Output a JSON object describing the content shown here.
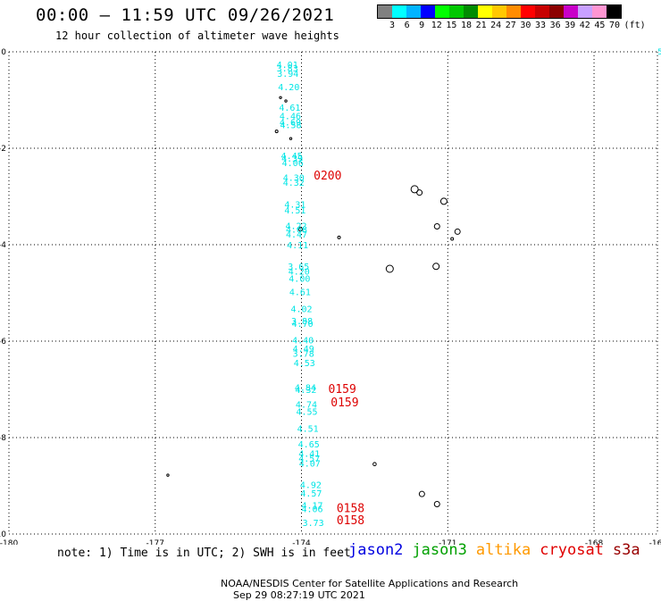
{
  "header": {
    "title": "00:00 – 11:59 UTC 09/26/2021",
    "subtitle": "12 hour collection of altimeter wave heights"
  },
  "legend": {
    "unit": "(ft)",
    "colors": [
      "#808080",
      "#00ffff",
      "#00b4ff",
      "#0000ff",
      "#00ff00",
      "#00c800",
      "#008c00",
      "#ffff00",
      "#ffc800",
      "#ff8c00",
      "#ff0000",
      "#c80000",
      "#8c0000",
      "#c800c8",
      "#c8a0ff",
      "#ff96d2",
      "#000000"
    ],
    "labels": [
      "3",
      "6",
      "9",
      "12",
      "15",
      "18",
      "21",
      "24",
      "27",
      "30",
      "33",
      "36",
      "39",
      "42",
      "45",
      "70"
    ]
  },
  "map": {
    "lon_ticks": [
      "-180",
      "-177",
      "-174",
      "-171",
      "-168",
      "-16"
    ],
    "lat_ticks": [
      "0",
      "-2",
      "-4",
      "-6",
      "-8",
      "-10"
    ],
    "corner_label": "5",
    "grid_lon": [
      -177,
      -174,
      -171,
      -168
    ],
    "grid_lat": [
      -2,
      -4,
      -6,
      -8
    ],
    "swh_color": "#00e5e5",
    "time_color": "#dd0000",
    "swh": [
      {
        "v": "4.01",
        "lat": -0.33,
        "lon": -174.29
      },
      {
        "v": "3.83",
        "lat": -0.41,
        "lon": -174.29
      },
      {
        "v": "3.94",
        "lat": -0.52,
        "lon": -174.28
      },
      {
        "v": "4.20",
        "lat": -0.8,
        "lon": -174.26
      },
      {
        "v": "4.61",
        "lat": -1.22,
        "lon": -174.24
      },
      {
        "v": "4.46",
        "lat": -1.4,
        "lon": -174.23
      },
      {
        "v": "4.69",
        "lat": -1.53,
        "lon": -174.23
      },
      {
        "v": "4.58",
        "lat": -1.58,
        "lon": -174.22
      },
      {
        "v": "4.45",
        "lat": -2.22,
        "lon": -174.2
      },
      {
        "v": "4.39",
        "lat": -2.28,
        "lon": -174.19
      },
      {
        "v": "4.06",
        "lat": -2.37,
        "lon": -174.18
      },
      {
        "v": "4.30",
        "lat": -2.68,
        "lon": -174.16
      },
      {
        "v": "4.32",
        "lat": -2.78,
        "lon": -174.16
      },
      {
        "v": "4.31",
        "lat": -3.23,
        "lon": -174.13
      },
      {
        "v": "4.51",
        "lat": -3.35,
        "lon": -174.13
      },
      {
        "v": "4.22",
        "lat": -3.68,
        "lon": -174.11
      },
      {
        "v": "4.68",
        "lat": -3.75,
        "lon": -174.1
      },
      {
        "v": "4.47",
        "lat": -3.85,
        "lon": -174.1
      },
      {
        "v": "4.11",
        "lat": -4.07,
        "lon": -174.08
      },
      {
        "v": "3.65",
        "lat": -4.52,
        "lon": -174.06
      },
      {
        "v": "4.20",
        "lat": -4.62,
        "lon": -174.05
      },
      {
        "v": "4.00",
        "lat": -4.77,
        "lon": -174.04
      },
      {
        "v": "4.61",
        "lat": -5.05,
        "lon": -174.03
      },
      {
        "v": "4.02",
        "lat": -5.4,
        "lon": -174.0
      },
      {
        "v": "3.88",
        "lat": -5.65,
        "lon": -173.99
      },
      {
        "v": "4.70",
        "lat": -5.7,
        "lon": -173.98
      },
      {
        "v": "4.40",
        "lat": -6.05,
        "lon": -173.97
      },
      {
        "v": "4.49",
        "lat": -6.22,
        "lon": -173.96
      },
      {
        "v": "3.78",
        "lat": -6.32,
        "lon": -173.96
      },
      {
        "v": "4.53",
        "lat": -6.52,
        "lon": -173.94
      },
      {
        "v": "4.84",
        "lat": -7.03,
        "lon": -173.92
      },
      {
        "v": "4.32",
        "lat": -7.07,
        "lon": -173.91
      },
      {
        "v": "4.74",
        "lat": -7.38,
        "lon": -173.9
      },
      {
        "v": "4.55",
        "lat": -7.53,
        "lon": -173.89
      },
      {
        "v": "4.51",
        "lat": -7.88,
        "lon": -173.87
      },
      {
        "v": "4.65",
        "lat": -8.2,
        "lon": -173.85
      },
      {
        "v": "4.41",
        "lat": -8.4,
        "lon": -173.84
      },
      {
        "v": "4.57",
        "lat": -8.5,
        "lon": -173.84
      },
      {
        "v": "4.07",
        "lat": -8.6,
        "lon": -173.83
      },
      {
        "v": "4.92",
        "lat": -9.05,
        "lon": -173.81
      },
      {
        "v": "4.57",
        "lat": -9.22,
        "lon": -173.8
      },
      {
        "v": "4.17",
        "lat": -9.47,
        "lon": -173.78
      },
      {
        "v": "4.06",
        "lat": -9.55,
        "lon": -173.78
      },
      {
        "v": "3.73",
        "lat": -9.83,
        "lon": -173.76
      }
    ],
    "times": [
      {
        "v": "0200",
        "lat": -2.65,
        "lon": -173.75
      },
      {
        "v": "0159",
        "lat": -7.07,
        "lon": -173.45
      },
      {
        "v": "0159",
        "lat": -7.35,
        "lon": -173.4
      },
      {
        "v": "0158",
        "lat": -9.55,
        "lon": -173.28
      },
      {
        "v": "0158",
        "lat": -9.8,
        "lon": -173.28
      }
    ],
    "islands": [
      {
        "lat": -0.95,
        "lon": -174.43,
        "r": 1.2
      },
      {
        "lat": -1.02,
        "lon": -174.32,
        "r": 1.2
      },
      {
        "lat": -1.65,
        "lon": -174.51,
        "r": 1.5
      },
      {
        "lat": -1.8,
        "lon": -174.22,
        "r": 1.2
      },
      {
        "lat": -2.85,
        "lon": -171.68,
        "r": 4
      },
      {
        "lat": -2.92,
        "lon": -171.58,
        "r": 3
      },
      {
        "lat": -3.1,
        "lon": -171.08,
        "r": 3.5
      },
      {
        "lat": -3.62,
        "lon": -171.22,
        "r": 3
      },
      {
        "lat": -3.73,
        "lon": -170.8,
        "r": 3
      },
      {
        "lat": -3.88,
        "lon": -170.91,
        "r": 1.5
      },
      {
        "lat": -3.68,
        "lon": -174.02,
        "r": 2
      },
      {
        "lat": -3.85,
        "lon": -173.23,
        "r": 1.5
      },
      {
        "lat": -4.5,
        "lon": -172.19,
        "r": 4
      },
      {
        "lat": -4.45,
        "lon": -171.24,
        "r": 3.5
      },
      {
        "lat": -8.55,
        "lon": -172.5,
        "r": 1.8
      },
      {
        "lat": -8.78,
        "lon": -176.74,
        "r": 1.2
      },
      {
        "lat": -9.17,
        "lon": -171.53,
        "r": 3
      },
      {
        "lat": -9.38,
        "lon": -171.22,
        "r": 3
      }
    ]
  },
  "notes": {
    "text": "note: 1) Time is in UTC; 2) SWH is in feet",
    "satellites": [
      {
        "name": "jason2",
        "color": "#0000e0"
      },
      {
        "name": "jason3",
        "color": "#00a000"
      },
      {
        "name": "altika",
        "color": "#ff9900"
      },
      {
        "name": "cryosat",
        "color": "#e00000"
      },
      {
        "name": "s3a",
        "color": "#990000"
      }
    ]
  },
  "footer": {
    "credit": "NOAA/NESDIS Center for Satellite Applications and Research",
    "timestamp": "Sep 29 08:27:19 UTC 2021"
  }
}
